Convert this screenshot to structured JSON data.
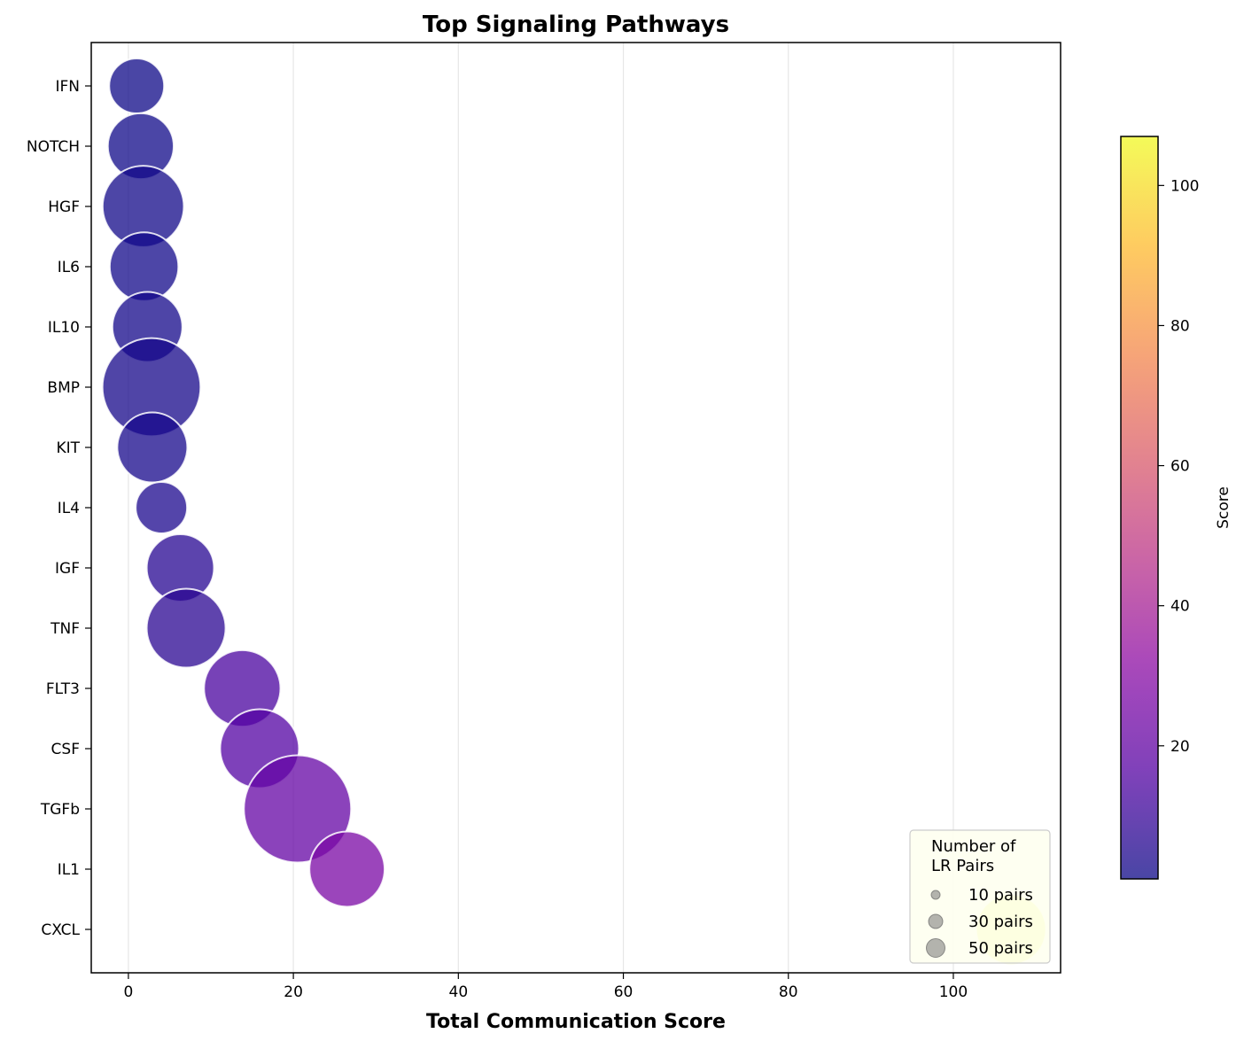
{
  "chart_data": {
    "type": "scatter",
    "title": "Top Signaling Pathways",
    "xlabel": "Total Communication Score",
    "ylabel": "",
    "xlim": [
      -4.5,
      113
    ],
    "xticks": [
      0,
      20,
      40,
      60,
      80,
      100
    ],
    "grid": "x",
    "categories": [
      "IFN",
      "NOTCH",
      "HGF",
      "IL6",
      "IL10",
      "BMP",
      "KIT",
      "IL4",
      "IGF",
      "TNF",
      "FLT3",
      "CSF",
      "TGFb",
      "IL1",
      "CXCL"
    ],
    "points": [
      {
        "name": "IFN",
        "x": 1.0,
        "lr_pairs": 16
      },
      {
        "name": "NOTCH",
        "x": 1.5,
        "lr_pairs": 23
      },
      {
        "name": "HGF",
        "x": 1.8,
        "lr_pairs": 35
      },
      {
        "name": "IL6",
        "x": 1.9,
        "lr_pairs": 25
      },
      {
        "name": "IL10",
        "x": 2.3,
        "lr_pairs": 26
      },
      {
        "name": "BMP",
        "x": 2.8,
        "lr_pairs": 51
      },
      {
        "name": "KIT",
        "x": 2.9,
        "lr_pairs": 26
      },
      {
        "name": "IL4",
        "x": 4.0,
        "lr_pairs": 14
      },
      {
        "name": "IGF",
        "x": 6.3,
        "lr_pairs": 24
      },
      {
        "name": "TNF",
        "x": 7.0,
        "lr_pairs": 33
      },
      {
        "name": "FLT3",
        "x": 13.8,
        "lr_pairs": 31
      },
      {
        "name": "CSF",
        "x": 15.9,
        "lr_pairs": 33
      },
      {
        "name": "TGFb",
        "x": 20.5,
        "lr_pairs": 61
      },
      {
        "name": "IL1",
        "x": 26.5,
        "lr_pairs": 30
      },
      {
        "name": "CXCL",
        "x": 107.0,
        "lr_pairs": 26
      }
    ],
    "colorbar": {
      "label": "Score",
      "range": [
        1.0,
        107.0
      ],
      "ticks": [
        20,
        40,
        60,
        80,
        100
      ],
      "colormap": "plasma",
      "alpha": 0.75
    },
    "legend": {
      "title": "Number of\nLR Pairs",
      "entries": [
        {
          "label": "10 pairs",
          "lr_pairs": 10
        },
        {
          "label": "30 pairs",
          "lr_pairs": 30
        },
        {
          "label": "50 pairs",
          "lr_pairs": 50
        }
      ],
      "position": "lower right",
      "background": "#fefff0"
    },
    "colors": {
      "marker_edge": "#ffffff",
      "legend_marker": "#808080",
      "grid": "#e6e6e6"
    }
  }
}
